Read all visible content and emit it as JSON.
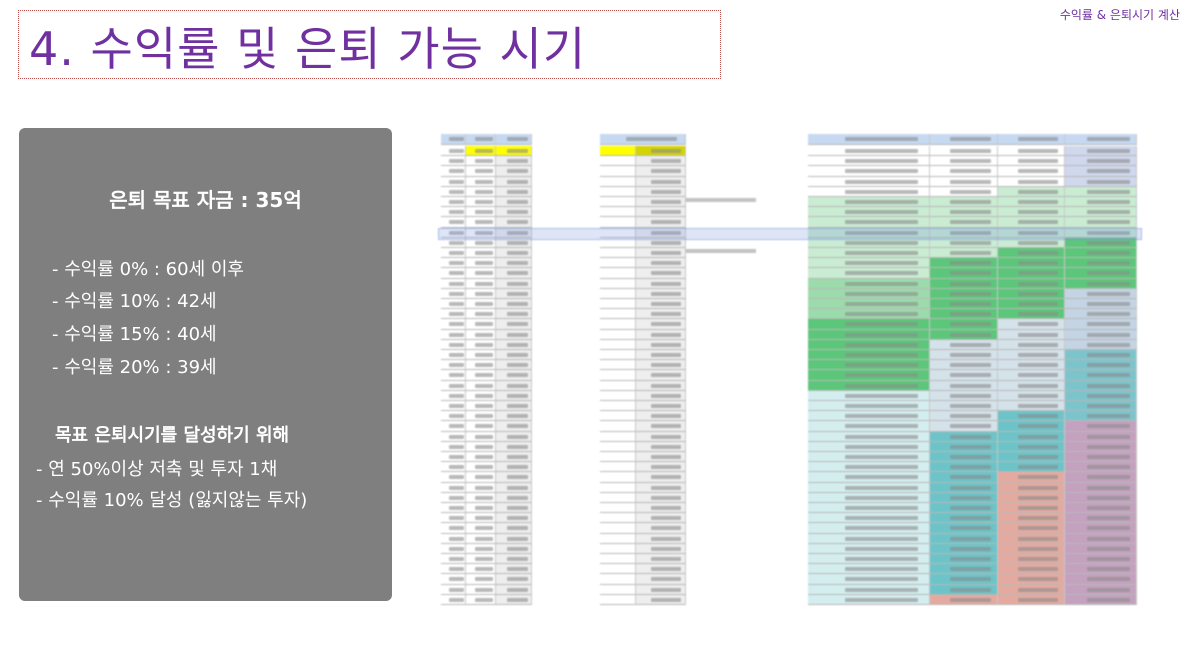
{
  "header": {
    "title": "4. 수익률 및 은퇴 가능 시기",
    "section_label": "수익률 & 은퇴시기 계산",
    "title_color": "#7030a0"
  },
  "summary_panel": {
    "heading": "은퇴 목표 자금 : 35억",
    "returns": [
      "- 수익률    0% : 60세 이후",
      "- 수익률 10% : 42세",
      "- 수익률 15% : 40세",
      "- 수익률 20% : 39세"
    ],
    "subheading": "목표 은퇴시기를 달성하기 위해",
    "actions": [
      "- 연 50%이상 저축 및 투자 1채",
      "- 수익률 10% 달성 (잃지않는 투자)"
    ],
    "background_color": "#7f7f7f"
  },
  "spreadsheet_image": {
    "description_icon": "spreadsheet-screenshot",
    "colors": {
      "highlight_yellow": "#ffff00",
      "light_green": "#c9ecd2",
      "green": "#5cc77a",
      "gray_blue": "#d4e2ea",
      "teal": "#6cc4c8",
      "salmon": "#e4aaa0",
      "mauve": "#c4a2bf",
      "light_cyan": "#d4eef0"
    }
  }
}
